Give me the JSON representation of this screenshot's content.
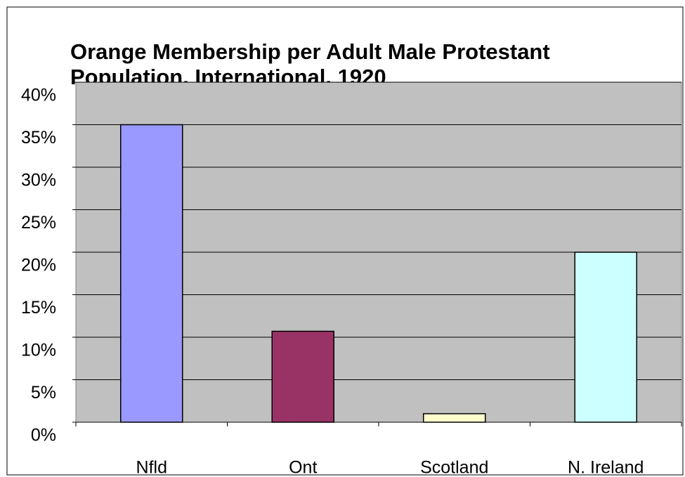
{
  "chart_data": {
    "type": "bar",
    "title": [
      "Orange Membership per Adult Male Protestant",
      "Population, International, 1920"
    ],
    "categories": [
      "Nfld",
      "Ont",
      "Scotland",
      "N. Ireland"
    ],
    "values": [
      35,
      10.7,
      1,
      20
    ],
    "colors": [
      "#9999ff",
      "#993366",
      "#ffffcc",
      "#ccffff"
    ],
    "ylim": [
      0,
      40
    ],
    "yticks": [
      {
        "value": 0,
        "label": "0%"
      },
      {
        "value": 5,
        "label": "5%"
      },
      {
        "value": 10,
        "label": "10%"
      },
      {
        "value": 15,
        "label": "15%"
      },
      {
        "value": 20,
        "label": "20%"
      },
      {
        "value": 25,
        "label": "25%"
      },
      {
        "value": 30,
        "label": "30%"
      },
      {
        "value": 35,
        "label": "35%"
      },
      {
        "value": 40,
        "label": "40%"
      }
    ],
    "grid": true
  }
}
